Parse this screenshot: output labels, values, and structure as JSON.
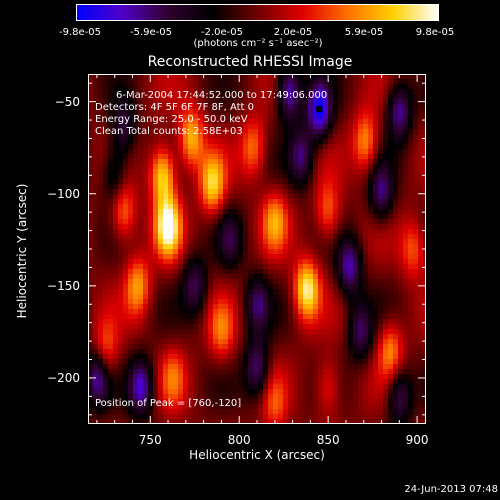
{
  "title": "Reconstructed RHESSI Image",
  "timestamp": "24-Jun-2013 07:48",
  "colorbar": {
    "ticks": [
      "-9.8e-05",
      "-5.9e-05",
      "-2.0e-05",
      "2.0e-05",
      "5.9e-05",
      "9.8e-05"
    ],
    "unit_label": "(photons cm⁻² s⁻¹ asec⁻²)",
    "colors": [
      "#0000ff",
      "#5000c8",
      "#300030",
      "#000000",
      "#700000",
      "#e00000",
      "#ff7000",
      "#ffd000",
      "#ffffff"
    ]
  },
  "annotations": {
    "time_range": "6-Mar-2004 17:44:52.000 to 17:49:06.000",
    "detectors": "Detectors: 4F 5F 6F 7F 8F, Att 0",
    "energy": "Energy Range: 25.0 - 50.0 keV",
    "clean": "Clean     Total counts: 2.58E+03",
    "peak": "Position of Peak = [760,-120]"
  },
  "chart_data": {
    "type": "heatmap",
    "title": "Reconstructed RHESSI Image",
    "xlabel": "Heliocentric X (arcsec)",
    "ylabel": "Heliocentric Y (arcsec)",
    "xlim": [
      715,
      905
    ],
    "ylim": [
      -225,
      -35
    ],
    "xticks": [
      750,
      800,
      850,
      900
    ],
    "yticks": [
      -50,
      -100,
      -150,
      -200
    ],
    "zlim": [
      -9.8e-05,
      9.8e-05
    ],
    "peak": [
      760,
      -120
    ],
    "blobs": [
      {
        "x": 760,
        "y": -118,
        "v": 1.0
      },
      {
        "x": 757,
        "y": -90,
        "v": 0.85
      },
      {
        "x": 773,
        "y": -70,
        "v": 0.7
      },
      {
        "x": 743,
        "y": -150,
        "v": 0.6
      },
      {
        "x": 735,
        "y": -110,
        "v": 0.55
      },
      {
        "x": 785,
        "y": -95,
        "v": 0.75
      },
      {
        "x": 808,
        "y": -75,
        "v": 0.5
      },
      {
        "x": 838,
        "y": -152,
        "v": 0.9
      },
      {
        "x": 820,
        "y": -115,
        "v": 0.55
      },
      {
        "x": 850,
        "y": -110,
        "v": 0.5
      },
      {
        "x": 871,
        "y": -72,
        "v": 0.6
      },
      {
        "x": 885,
        "y": -185,
        "v": 0.55
      },
      {
        "x": 790,
        "y": -175,
        "v": 0.45
      },
      {
        "x": 763,
        "y": -200,
        "v": 0.4
      },
      {
        "x": 725,
        "y": -185,
        "v": 0.45
      },
      {
        "x": 850,
        "y": -205,
        "v": 0.4
      },
      {
        "x": 898,
        "y": -130,
        "v": 0.45
      },
      {
        "x": 820,
        "y": -215,
        "v": 0.35
      },
      {
        "x": 845,
        "y": -55,
        "v": -0.9
      },
      {
        "x": 828,
        "y": -45,
        "v": -0.8
      },
      {
        "x": 890,
        "y": -55,
        "v": -0.7
      },
      {
        "x": 745,
        "y": -205,
        "v": -0.75
      },
      {
        "x": 720,
        "y": -200,
        "v": -0.7
      },
      {
        "x": 862,
        "y": -140,
        "v": -0.7
      },
      {
        "x": 835,
        "y": -80,
        "v": -0.6
      },
      {
        "x": 880,
        "y": -100,
        "v": -0.6
      },
      {
        "x": 810,
        "y": -195,
        "v": -0.65
      },
      {
        "x": 810,
        "y": -160,
        "v": -0.55
      },
      {
        "x": 890,
        "y": -210,
        "v": -0.6
      },
      {
        "x": 775,
        "y": -150,
        "v": -0.55
      },
      {
        "x": 735,
        "y": -65,
        "v": -0.5
      },
      {
        "x": 795,
        "y": -125,
        "v": -0.4
      },
      {
        "x": 868,
        "y": -175,
        "v": -0.55
      },
      {
        "x": 730,
        "y": -90,
        "v": -0.45
      }
    ]
  }
}
